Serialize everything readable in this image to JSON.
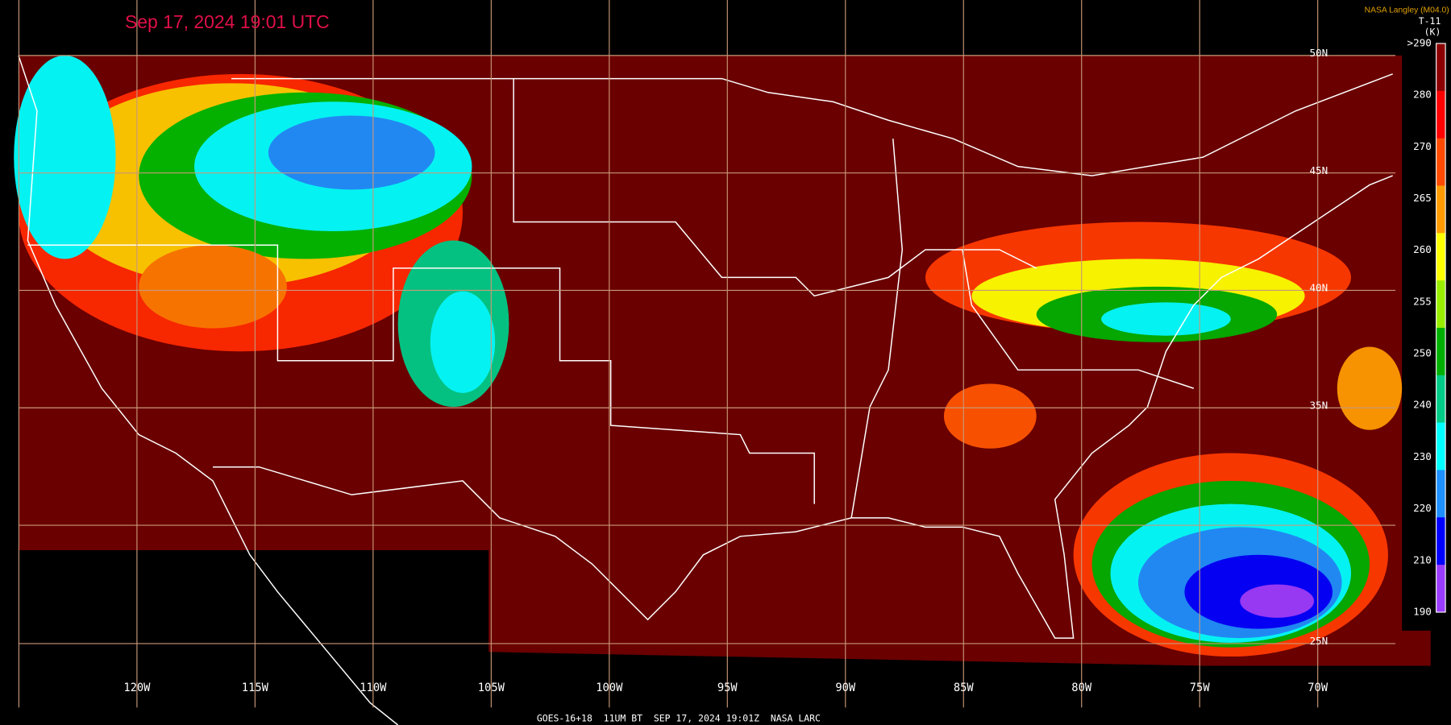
{
  "header": {
    "title": "Sep 17, 2024 19:01 UTC",
    "credit": "NASA Langley (M04.0)"
  },
  "colorbar": {
    "title": "T-11",
    "unit": "(K)",
    "labels": [
      ">290",
      "280",
      "270",
      "265",
      "260",
      "255",
      "250",
      "240",
      "230",
      "220",
      "210",
      "190"
    ],
    "colors": [
      "#8b0000",
      "#ff0000",
      "#ff4a00",
      "#ff9a00",
      "#ffff00",
      "#99ee00",
      "#00b000",
      "#00cc88",
      "#00ffff",
      "#1e90ff",
      "#0000ff",
      "#9a3cff"
    ]
  },
  "longitudes": [
    "120W",
    "115W",
    "110W",
    "105W",
    "100W",
    "95W",
    "90W",
    "85W",
    "80W",
    "75W",
    "70W"
  ],
  "latitudes": [
    "50N",
    "45N",
    "40N",
    "35N",
    "25N"
  ],
  "footer": "GOES-16+18  11UM BT  SEP 17, 2024 19:01Z  NASA LARC"
}
